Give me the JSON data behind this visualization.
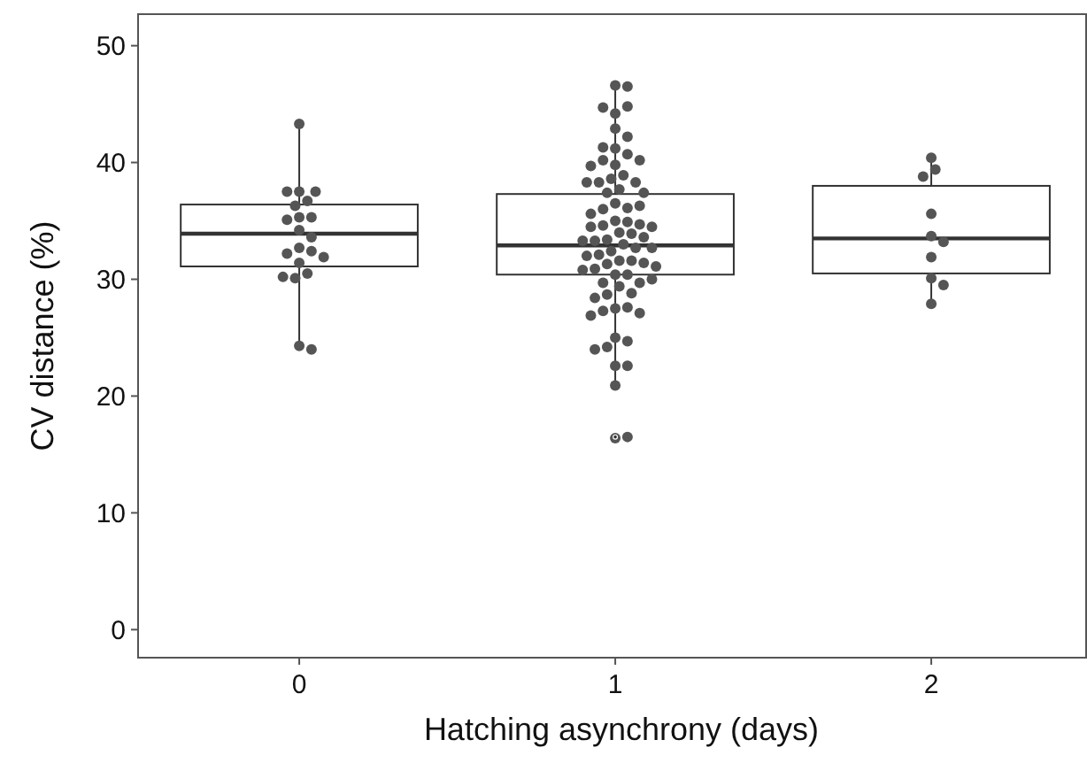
{
  "chart_data": {
    "type": "box",
    "xlabel": "Hatching asynchrony (days)",
    "ylabel": "CV distance (%)",
    "categories": [
      "0",
      "1",
      "2"
    ],
    "ylim": [
      -2.4,
      52.7
    ],
    "yticks": [
      0,
      10,
      20,
      30,
      40,
      50
    ],
    "grid": false,
    "color": "#333333",
    "boxes": [
      {
        "low": 24.0,
        "q1": 31.1,
        "median": 33.9,
        "q3": 36.4,
        "high": 43.3
      },
      {
        "low": 20.8,
        "q1": 30.4,
        "median": 32.9,
        "q3": 37.3,
        "high": 46.6,
        "outliers": [
          16.5
        ]
      },
      {
        "low": 28.0,
        "q1": 30.5,
        "median": 33.5,
        "q3": 38.0,
        "high": 40.3
      }
    ],
    "series": [
      {
        "type": "scatter",
        "color": "#555555",
        "marker": "circle",
        "x": [
          "0",
          "0",
          "0",
          "0",
          "0",
          "0",
          "0",
          "0",
          "0",
          "0",
          "0",
          "0",
          "0",
          "0",
          "0",
          "0",
          "0",
          "0",
          "0",
          "0",
          "0"
        ],
        "values": [
          43.3,
          37.5,
          36.7,
          36.3,
          37.5,
          37.5,
          35.3,
          35.3,
          35.1,
          34.2,
          33.6,
          32.7,
          32.4,
          32.2,
          31.9,
          31.4,
          30.5,
          30.1,
          30.2,
          24.3,
          24.0
        ]
      },
      {
        "type": "scatter",
        "color": "#555555",
        "marker": "circle",
        "x": [
          "1",
          "1",
          "1",
          "1",
          "1",
          "1",
          "1",
          "1",
          "1",
          "1",
          "1",
          "1",
          "1",
          "1",
          "1",
          "1",
          "1",
          "1",
          "1",
          "1",
          "1",
          "1",
          "1",
          "1",
          "1",
          "1",
          "1",
          "1",
          "1",
          "1",
          "1",
          "1",
          "1",
          "1",
          "1",
          "1",
          "1",
          "1",
          "1",
          "1",
          "1",
          "1",
          "1",
          "1",
          "1",
          "1",
          "1",
          "1",
          "1",
          "1",
          "1",
          "1",
          "1",
          "1",
          "1",
          "1",
          "1",
          "1",
          "1",
          "1",
          "1",
          "1",
          "1",
          "1",
          "1",
          "1",
          "1",
          "1",
          "1",
          "1",
          "1",
          "1",
          "1",
          "1",
          "1"
        ],
        "values": [
          46.6,
          46.5,
          44.2,
          44.8,
          44.7,
          42.9,
          42.2,
          41.2,
          41.3,
          40.7,
          39.8,
          40.2,
          40.2,
          39.7,
          38.9,
          38.6,
          38.3,
          38.3,
          38.3,
          37.7,
          37.4,
          37.4,
          36.5,
          36.1,
          36.0,
          36.3,
          35.6,
          35.0,
          34.9,
          34.6,
          34.7,
          34.5,
          34.5,
          34.0,
          33.9,
          33.4,
          33.6,
          33.3,
          33.3,
          33.0,
          32.7,
          32.7,
          32.4,
          32.1,
          32.0,
          31.6,
          31.3,
          31.6,
          31.4,
          30.9,
          30.8,
          31.1,
          30.4,
          30.4,
          29.7,
          29.7,
          29.4,
          30.0,
          28.8,
          28.7,
          28.4,
          27.5,
          27.6,
          27.3,
          27.1,
          26.9,
          25.0,
          24.7,
          24.2,
          24.0,
          22.6,
          22.6,
          20.9,
          16.4,
          16.5
        ]
      },
      {
        "type": "scatter",
        "color": "#555555",
        "marker": "circle",
        "x": [
          "2",
          "2",
          "2",
          "2",
          "2",
          "2",
          "2",
          "2",
          "2",
          "2"
        ],
        "values": [
          40.4,
          39.4,
          38.8,
          35.6,
          33.7,
          33.2,
          31.9,
          30.1,
          29.5,
          27.9
        ]
      }
    ]
  }
}
